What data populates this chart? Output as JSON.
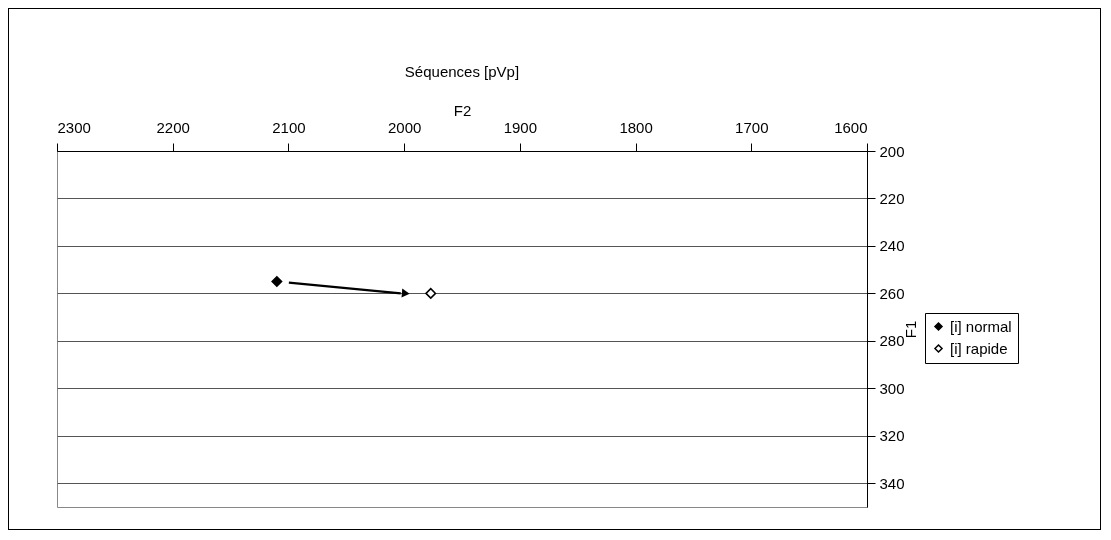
{
  "chart_data": {
    "type": "scatter",
    "title": "Séquences [pVp]",
    "xlabel": "F2",
    "ylabel": "F1",
    "series": [
      {
        "name": "[i] normal",
        "color": "#000000",
        "x": [
          2110
        ],
        "values": [
          255
        ]
      },
      {
        "name": "[i] rapide",
        "color": "#000000",
        "x": [
          1977
        ],
        "values": [
          260
        ]
      }
    ],
    "xlim": [
      2300,
      1600
    ],
    "xticks": [
      2300,
      2200,
      2100,
      2000,
      1900,
      1800,
      1700,
      1600
    ],
    "ylim": [
      350,
      200
    ],
    "yticks": [
      200,
      220,
      240,
      260,
      280,
      300,
      320,
      340
    ],
    "grid": "y",
    "legend": "right",
    "marker": "diamond"
  }
}
